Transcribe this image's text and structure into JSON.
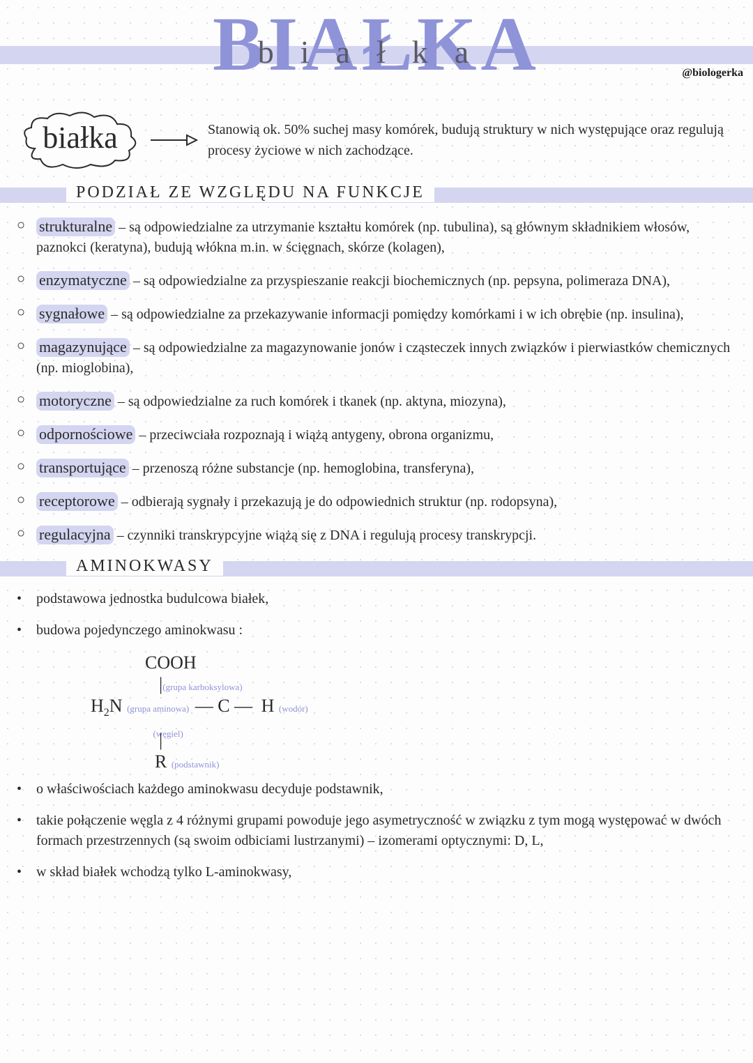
{
  "colors": {
    "accent": "#8f93d8",
    "highlight_bg": "#d4d5f0",
    "text": "#2a2a2a",
    "dot_grid": "#d0d0d8",
    "page_bg": "#fdfdfd"
  },
  "title": {
    "main": "BIAŁKA",
    "script_overlay": "białka",
    "credit": "@biologerka"
  },
  "cloud": {
    "label": "białka",
    "intro": "Stanowią ok. 50% suchej masy komórek, budują struktury w nich występujące oraz regulują procesy życiowe w nich zachodzące."
  },
  "section1": {
    "heading": "PODZIAŁ ZE WZGLĘDU NA FUNKCJE",
    "items": [
      {
        "term": "strukturalne",
        "desc": " – są odpowiedzialne za utrzymanie kształtu komórek (np. tubulina), są głównym składnikiem włosów, paznokci (keratyna), budują włókna m.in. w ścięgnach, skórze (kolagen),"
      },
      {
        "term": "enzymatyczne",
        "desc": " – są odpowiedzialne za przyspieszanie reakcji biochemicznych (np. pepsyna, polimeraza DNA),"
      },
      {
        "term": "sygnałowe",
        "desc": " – są odpowiedzialne za przekazywanie informacji pomiędzy komórkami i w ich obrębie (np. insulina),"
      },
      {
        "term": "magazynujące",
        "desc": " – są odpowiedzialne za magazynowanie jonów i cząsteczek innych związków i pierwiastków chemicznych (np. mioglobina),"
      },
      {
        "term": "motoryczne",
        "desc": " – są odpowiedzialne za ruch komórek i tkanek (np. aktyna, miozyna),"
      },
      {
        "term": "odpornościowe",
        "desc": " – przeciwciała rozpoznają i wiążą antygeny, obrona organizmu,"
      },
      {
        "term": "transportujące",
        "desc": " – przenoszą różne substancje (np. hemoglobina, transferyna),"
      },
      {
        "term": "receptorowe",
        "desc": " – odbierają sygnały i przekazują je do odpowiednich struktur (np. rodopsyna),"
      },
      {
        "term": "regulacyjna",
        "desc": " – czynniki transkrypcyjne wiążą się z DNA i regulują procesy transkrypcji."
      }
    ]
  },
  "section2": {
    "heading": "AMINOKWASY",
    "items_a": [
      "podstawowa jednostka budulcowa białek,",
      "budowa pojedynczego aminokwasu :"
    ],
    "diagram": {
      "top": "COOH",
      "top_label": "(grupa karboksylowa)",
      "left": "H₂N",
      "left_label": "(grupa aminowa)",
      "center": "C",
      "center_label": "(węgiel)",
      "right": "H",
      "right_label": "(wodór)",
      "bottom": "R",
      "bottom_label": "(podstawnik)"
    },
    "items_b": [
      "o właściwościach każdego aminokwasu decyduje podstawnik,",
      "takie połączenie węgla z 4 różnymi grupami powoduje jego asymetryczność w związku z tym mogą występować w dwóch formach przestrzennych (są swoim odbiciami lustrzanymi) – izomerami optycznymi: D, L,",
      "w skład białek wchodzą tylko L-aminokwasy,"
    ]
  }
}
